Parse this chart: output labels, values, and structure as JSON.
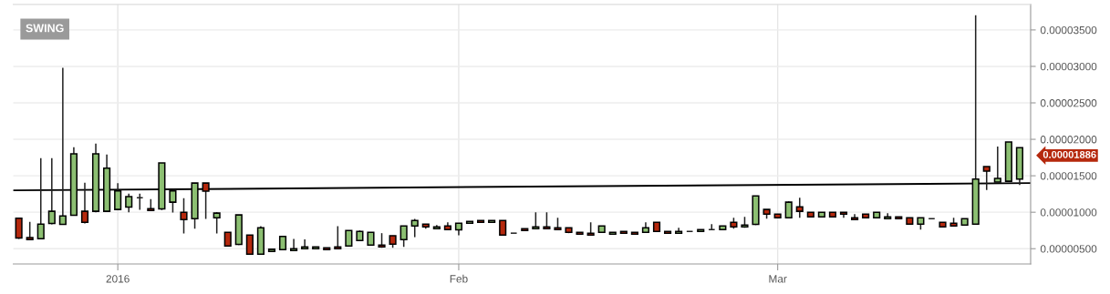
{
  "chart_data": {
    "type": "candlestick",
    "xlim": [
      "2015-12-22T12:00",
      "2016-03-24"
    ],
    "xticks": [
      {
        "value": "2016-01-01",
        "label": "2016"
      },
      {
        "value": "2016-02-01",
        "label": "Feb"
      },
      {
        "value": "2016-03-01",
        "label": "Mar"
      }
    ],
    "ylim": [
      2.9e-06,
      3.85e-05
    ],
    "yticks": [
      {
        "value": 5e-06,
        "label": "0.00000500"
      },
      {
        "value": 1e-05,
        "label": "0.00001000"
      },
      {
        "value": 1.5e-05,
        "label": "0.00001500"
      },
      {
        "value": 2e-05,
        "label": "0.00002000"
      },
      {
        "value": 2.5e-05,
        "label": "0.00002500"
      },
      {
        "value": 3e-05,
        "label": "0.00003000"
      },
      {
        "value": 3.5e-05,
        "label": "0.00003500"
      }
    ],
    "grid": true,
    "annotations": [
      "SWING",
      {
        "text": "0.00001886",
        "x": "2016-03-23",
        "y": 1.886e-05
      }
    ],
    "series": [
      {
        "type": "line",
        "color": "#000000",
        "x": [
          "2015-12-22T12:00",
          "2016-03-24"
        ],
        "values": [
          1.3e-05,
          1.4e-05
        ]
      },
      {
        "x": [
          "2015-12-23",
          "2015-12-24",
          "2015-12-25",
          "2015-12-26",
          "2015-12-27",
          "2015-12-28",
          "2015-12-29",
          "2015-12-30",
          "2015-12-31",
          "2016-01-01",
          "2016-01-02",
          "2016-01-03",
          "2016-01-04",
          "2016-01-05",
          "2016-01-06",
          "2016-01-07",
          "2016-01-08",
          "2016-01-09",
          "2016-01-10",
          "2016-01-11",
          "2016-01-12",
          "2016-01-13",
          "2016-01-14",
          "2016-01-15",
          "2016-01-16",
          "2016-01-17",
          "2016-01-18",
          "2016-01-19",
          "2016-01-20",
          "2016-01-21",
          "2016-01-22",
          "2016-01-23",
          "2016-01-24",
          "2016-01-25",
          "2016-01-26",
          "2016-01-27",
          "2016-01-28",
          "2016-01-29",
          "2016-01-30",
          "2016-01-31",
          "2016-02-01",
          "2016-02-02",
          "2016-02-03",
          "2016-02-04",
          "2016-02-05",
          "2016-02-06",
          "2016-02-07",
          "2016-02-08",
          "2016-02-09",
          "2016-02-10",
          "2016-02-11",
          "2016-02-12",
          "2016-02-13",
          "2016-02-14",
          "2016-02-15",
          "2016-02-16",
          "2016-02-17",
          "2016-02-18",
          "2016-02-19",
          "2016-02-20",
          "2016-02-21",
          "2016-02-22",
          "2016-02-23",
          "2016-02-24",
          "2016-02-25",
          "2016-02-26",
          "2016-02-27",
          "2016-02-28",
          "2016-02-29",
          "2016-03-01",
          "2016-03-02",
          "2016-03-03",
          "2016-03-04",
          "2016-03-05",
          "2016-03-06",
          "2016-03-07",
          "2016-03-08",
          "2016-03-09",
          "2016-03-10",
          "2016-03-11",
          "2016-03-12",
          "2016-03-13",
          "2016-03-14",
          "2016-03-15",
          "2016-03-16",
          "2016-03-17",
          "2016-03-18",
          "2016-03-19",
          "2016-03-20",
          "2016-03-21",
          "2016-03-22",
          "2016-03-23"
        ],
        "ohlc": [
          [
            9.17e-06,
            9.17e-06,
            6.33e-06,
            6.46e-06
          ],
          [
            6.54e-06,
            8.67e-06,
            6.25e-06,
            6.25e-06
          ],
          [
            6.38e-06,
            1.742e-05,
            6.38e-06,
            8.38e-06
          ],
          [
            8.46e-06,
            1.742e-05,
            8.33e-06,
            1.013e-05
          ],
          [
            8.33e-06,
            2.98e-05,
            8.33e-06,
            9.5e-06
          ],
          [
            9.58e-06,
            1.892e-05,
            9.58e-06,
            1.8e-05
          ],
          [
            1.013e-05,
            1.404e-05,
            8.46e-06,
            8.63e-06
          ],
          [
            1.013e-05,
            1.942e-05,
            1e-05,
            1.8e-05
          ],
          [
            1.013e-05,
            1.792e-05,
            1.013e-05,
            1.604e-05
          ],
          [
            1.038e-05,
            1.4e-05,
            1.038e-05,
            1.292e-05
          ],
          [
            1.071e-05,
            1.254e-05,
            1e-05,
            1.213e-05
          ],
          [
            1.2e-05,
            1.254e-05,
            1.033e-05,
            1.2e-05
          ],
          [
            1.05e-05,
            1.179e-05,
            1.025e-05,
            1.025e-05
          ],
          [
            1.046e-05,
            1.675e-05,
            1.029e-05,
            1.675e-05
          ],
          [
            1.138e-05,
            1.292e-05,
            9.96e-06,
            1.292e-05
          ],
          [
            1e-05,
            1.192e-05,
            7.08e-06,
            9e-06
          ],
          [
            9.13e-06,
            1.4e-05,
            7.75e-06,
            1.4e-05
          ],
          [
            1.4e-05,
            1.4e-05,
            9.08e-06,
            1.288e-05
          ],
          [
            9.25e-06,
            1e-05,
            7.08e-06,
            9.88e-06
          ],
          [
            7.25e-06,
            7.25e-06,
            5.38e-06,
            5.38e-06
          ],
          [
            5.6e-06,
            9.63e-06,
            5.5e-06,
            9.63e-06
          ],
          [
            6.88e-06,
            6.88e-06,
            4.25e-06,
            4.25e-06
          ],
          [
            4.25e-06,
            8.08e-06,
            4.25e-06,
            7.88e-06
          ],
          [
            4.63e-06,
            4.92e-06,
            4.63e-06,
            4.92e-06
          ],
          [
            4.88e-06,
            6.79e-06,
            4.88e-06,
            6.67e-06
          ],
          [
            4.75e-06,
            6.33e-06,
            4.75e-06,
            5e-06
          ],
          [
            5e-06,
            6.29e-06,
            5e-06,
            5.25e-06
          ],
          [
            5e-06,
            5.25e-06,
            5e-06,
            5.25e-06
          ],
          [
            5.13e-06,
            5.13e-06,
            4.88e-06,
            4.88e-06
          ],
          [
            5.25e-06,
            8.08e-06,
            5e-06,
            5e-06
          ],
          [
            5.38e-06,
            7.5e-06,
            5.38e-06,
            7.5e-06
          ],
          [
            6.13e-06,
            7.5e-06,
            6.13e-06,
            7.38e-06
          ],
          [
            5.5e-06,
            7.25e-06,
            5.5e-06,
            7.25e-06
          ],
          [
            5.5e-06,
            7.13e-06,
            5.13e-06,
            5.25e-06
          ],
          [
            6.79e-06,
            6.79e-06,
            5.13e-06,
            5.63e-06
          ],
          [
            6.25e-06,
            8.13e-06,
            5.25e-06,
            8.13e-06
          ],
          [
            8.13e-06,
            9.08e-06,
            6.58e-06,
            8.88e-06
          ],
          [
            8.38e-06,
            8.38e-06,
            7.75e-06,
            8e-06
          ],
          [
            7.75e-06,
            8.25e-06,
            7.75e-06,
            8e-06
          ],
          [
            8.13e-06,
            8.63e-06,
            7.63e-06,
            7.63e-06
          ],
          [
            7.58e-06,
            8.5e-06,
            6.83e-06,
            8.5e-06
          ],
          [
            8.5e-06,
            8.75e-06,
            8.5e-06,
            8.75e-06
          ],
          [
            8.88e-06,
            8.88e-06,
            8.63e-06,
            8.63e-06
          ],
          [
            8.63e-06,
            8.88e-06,
            8.63e-06,
            8.88e-06
          ],
          [
            8.88e-06,
            8.88e-06,
            6.88e-06,
            6.88e-06
          ],
          [
            7.13e-06,
            7.13e-06,
            7.13e-06,
            7.13e-06
          ],
          [
            7.75e-06,
            7.75e-06,
            7.5e-06,
            7.5e-06
          ],
          [
            7.75e-06,
            1e-05,
            7.75e-06,
            8e-06
          ],
          [
            8e-06,
            1e-05,
            7.75e-06,
            7.75e-06
          ],
          [
            7.88e-06,
            9.25e-06,
            7.63e-06,
            7.63e-06
          ],
          [
            7.88e-06,
            7.88e-06,
            7.13e-06,
            7.25e-06
          ],
          [
            7.25e-06,
            7.25e-06,
            7e-06,
            7e-06
          ],
          [
            7.13e-06,
            8.63e-06,
            6.88e-06,
            6.88e-06
          ],
          [
            7.25e-06,
            8.13e-06,
            7.25e-06,
            8.13e-06
          ],
          [
            7e-06,
            7.25e-06,
            7e-06,
            7.25e-06
          ],
          [
            7.38e-06,
            7.38e-06,
            7.13e-06,
            7.13e-06
          ],
          [
            7.25e-06,
            7.25e-06,
            7e-06,
            7e-06
          ],
          [
            7.25e-06,
            8.63e-06,
            7.25e-06,
            7.88e-06
          ],
          [
            8.63e-06,
            8.63e-06,
            7.38e-06,
            7.38e-06
          ],
          [
            7.38e-06,
            7.38e-06,
            7.13e-06,
            7.13e-06
          ],
          [
            7.13e-06,
            7.88e-06,
            7.13e-06,
            7.38e-06
          ],
          [
            7.38e-06,
            7.38e-06,
            7.38e-06,
            7.38e-06
          ],
          [
            7.38e-06,
            7.63e-06,
            7.38e-06,
            7.63e-06
          ],
          [
            7.63e-06,
            8.38e-06,
            7.63e-06,
            7.63e-06
          ],
          [
            7.63e-06,
            8.13e-06,
            7.63e-06,
            8.13e-06
          ],
          [
            8.63e-06,
            9.25e-06,
            7.75e-06,
            8e-06
          ],
          [
            8e-06,
            9.38e-06,
            7.88e-06,
            8.25e-06
          ],
          [
            8.33e-06,
            1.225e-05,
            8.25e-06,
            1.225e-05
          ],
          [
            1.038e-05,
            1.038e-05,
            9.13e-06,
            9.75e-06
          ],
          [
            9.75e-06,
            9.75e-06,
            9.25e-06,
            9.25e-06
          ],
          [
            9.25e-06,
            1.15e-05,
            9.25e-06,
            1.138e-05
          ],
          [
            1.075e-05,
            1.2e-05,
            9.25e-06,
            1.013e-05
          ],
          [
            1e-05,
            1e-05,
            9.38e-06,
            9.38e-06
          ],
          [
            9.38e-06,
            1e-05,
            9.38e-06,
            1e-05
          ],
          [
            1e-05,
            1e-05,
            9.38e-06,
            9.38e-06
          ],
          [
            1e-05,
            1e-05,
            9.25e-06,
            9.75e-06
          ],
          [
            9.25e-06,
            9.75e-06,
            9e-06,
            9e-06
          ],
          [
            9.75e-06,
            9.75e-06,
            9.25e-06,
            9.25e-06
          ],
          [
            9.25e-06,
            1e-05,
            9.25e-06,
            1e-05
          ],
          [
            9.13e-06,
            9.88e-06,
            9.13e-06,
            9.38e-06
          ],
          [
            9.38e-06,
            9.38e-06,
            9.13e-06,
            9.13e-06
          ],
          [
            9.25e-06,
            9.25e-06,
            8.38e-06,
            8.38e-06
          ],
          [
            8.38e-06,
            9.25e-06,
            7.63e-06,
            9.25e-06
          ],
          [
            9.13e-06,
            9.13e-06,
            9.13e-06,
            9.13e-06
          ],
          [
            8.63e-06,
            8.63e-06,
            8e-06,
            8e-06
          ],
          [
            8.5e-06,
            9.25e-06,
            8.13e-06,
            8.13e-06
          ],
          [
            8.25e-06,
            9.13e-06,
            8.25e-06,
            9.13e-06
          ],
          [
            8.38e-06,
            3.7e-05,
            8.38e-06,
            1.454e-05
          ],
          [
            1.625e-05,
            1.625e-05,
            1.304e-05,
            1.563e-05
          ],
          [
            1.413e-05,
            1.9e-05,
            1.413e-05,
            1.463e-05
          ],
          [
            1.425e-05,
            1.963e-05,
            1.425e-05,
            1.963e-05
          ],
          [
            1.454e-05,
            1.886e-05,
            1.375e-05,
            1.886e-05
          ]
        ]
      }
    ]
  }
}
